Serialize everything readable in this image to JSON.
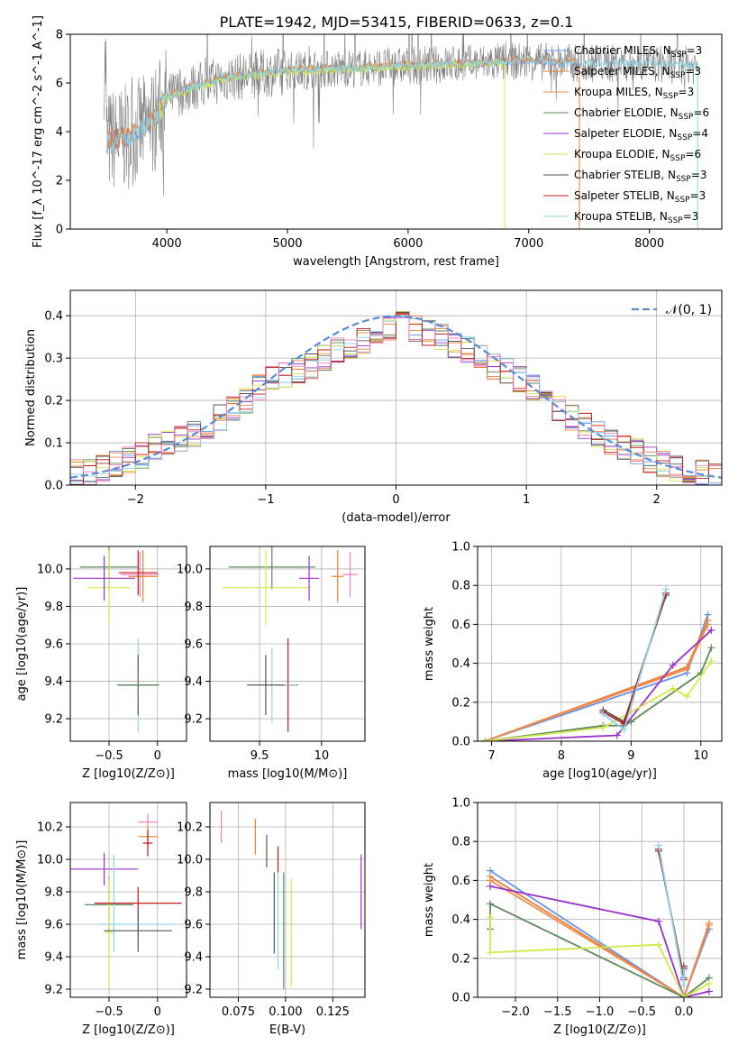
{
  "title": "PLATE=1942, MJD=53415, FIBERID=0633, z=0.1",
  "colors": {
    "chabrier_miles": "#6495ED",
    "salpeter_miles": "#ED7D31",
    "kroupa_miles": "#F08A4B",
    "chabrier_elodie": "#5B8A5B",
    "salpeter_elodie": "#9932CC",
    "kroupa_elodie": "#D4E84A",
    "chabrier_stelib": "#555555",
    "salpeter_stelib": "#C0171A",
    "kroupa_stelib": "#8FD3E6",
    "pink": "#F080C0",
    "spectrum": "#808080",
    "normal": "#5B8BD6"
  },
  "chart_data": [
    {
      "id": "spectrum",
      "type": "line",
      "xlabel": "wavelength [Angstrom, rest frame]",
      "ylabel": "Flux [f_λ 10^-17 erg cm^-2 s^-1 A^-1]",
      "xlim": [
        3200,
        8600
      ],
      "ylim": [
        0,
        8
      ],
      "xticks": [
        4000,
        5000,
        6000,
        7000,
        8000
      ],
      "yticks": [
        0,
        2,
        4,
        6,
        8
      ],
      "legend_position": "top-right",
      "legend": [
        {
          "name": "Chabrier MILES, N",
          "sub": "SSP",
          "tail": "=3",
          "color": "#6495ED"
        },
        {
          "name": "Salpeter MILES, N",
          "sub": "SSP",
          "tail": "=3",
          "color": "#ED7D31"
        },
        {
          "name": "Kroupa MILES, N",
          "sub": "SSP",
          "tail": "=3",
          "color": "#F08A4B"
        },
        {
          "name": "Chabrier ELODIE, N",
          "sub": "SSP",
          "tail": "=6",
          "color": "#5B8A5B"
        },
        {
          "name": "Salpeter ELODIE, N",
          "sub": "SSP",
          "tail": "=4",
          "color": "#9932CC"
        },
        {
          "name": "Kroupa ELODIE, N",
          "sub": "SSP",
          "tail": "=6",
          "color": "#D4E84A"
        },
        {
          "name": "Chabrier STELIB, N",
          "sub": "SSP",
          "tail": "=3",
          "color": "#555555"
        },
        {
          "name": "Salpeter STELIB, N",
          "sub": "SSP",
          "tail": "=3",
          "color": "#C0171A"
        },
        {
          "name": "Kroupa STELIB, N",
          "sub": "SSP",
          "tail": "=3",
          "color": "#8FD3E6"
        }
      ],
      "continuum": {
        "x": [
          3500,
          3700,
          3900,
          4000,
          4200,
          4500,
          5000,
          5500,
          6000,
          6500,
          7000,
          7500,
          8000,
          8400
        ],
        "y": [
          3.6,
          3.8,
          4.5,
          5.4,
          5.8,
          6.2,
          6.5,
          6.6,
          6.7,
          6.8,
          6.9,
          6.8,
          6.8,
          6.7
        ]
      },
      "model_ranges": {
        "miles": [
          3500,
          7420
        ],
        "elodie": [
          3900,
          6800
        ],
        "stelib": [
          3500,
          8400
        ]
      }
    },
    {
      "id": "residuals",
      "type": "histogram",
      "xlabel": "(data-model)/error",
      "ylabel": "Normed distribution",
      "xlim": [
        -2.5,
        2.5
      ],
      "ylim": [
        0,
        0.46
      ],
      "xticks": [
        -2,
        -1,
        0,
        1,
        2
      ],
      "yticks": [
        0.0,
        0.1,
        0.2,
        0.3,
        0.4
      ],
      "legend": "𝒩(0, 1)",
      "grid": true,
      "bin_width": 0.1,
      "hist_values": [
        0.03,
        0.03,
        0.04,
        0.05,
        0.06,
        0.07,
        0.09,
        0.1,
        0.11,
        0.12,
        0.14,
        0.16,
        0.18,
        0.2,
        0.23,
        0.25,
        0.26,
        0.27,
        0.28,
        0.3,
        0.32,
        0.33,
        0.34,
        0.35,
        0.37,
        0.38,
        0.37,
        0.36,
        0.35,
        0.33,
        0.32,
        0.3,
        0.28,
        0.27,
        0.25,
        0.23,
        0.2,
        0.18,
        0.16,
        0.14,
        0.12,
        0.1,
        0.09,
        0.08,
        0.06,
        0.05,
        0.04,
        0.03,
        0.03,
        0.02
      ]
    },
    {
      "id": "age-vs-z",
      "type": "errorbar",
      "xlabel": "Z [log10(Z/Z⊙)]",
      "ylabel": "age [log10(age/yr)]",
      "xlim": [
        -0.9,
        0.3
      ],
      "ylim": [
        9.08,
        10.12
      ],
      "xticks": [
        -0.5,
        0.0
      ],
      "yticks": [
        9.2,
        9.4,
        9.6,
        9.8,
        10.0
      ],
      "grid": true,
      "points": [
        {
          "x": -0.5,
          "y": 10.01,
          "xerr": 0.3,
          "yerr": 0.12,
          "color": "#5B8A5B"
        },
        {
          "x": -0.5,
          "y": 9.9,
          "xerr": 0.22,
          "yerr": 0.2,
          "color": "#D4E84A"
        },
        {
          "x": -0.55,
          "y": 9.95,
          "xerr": 0.32,
          "yerr": 0.12,
          "color": "#9932CC"
        },
        {
          "x": -0.18,
          "y": 9.97,
          "xerr": 0.2,
          "yerr": 0.12,
          "color": "#F080C0"
        },
        {
          "x": -0.15,
          "y": 9.96,
          "xerr": 0.15,
          "yerr": 0.14,
          "color": "#ED7D31"
        },
        {
          "x": -0.2,
          "y": 9.98,
          "xerr": 0.2,
          "yerr": 0.12,
          "color": "#C0171A"
        },
        {
          "x": -0.2,
          "y": 9.38,
          "xerr": 0.2,
          "yerr": 0.25,
          "color": "#8FD3E6"
        },
        {
          "x": -0.2,
          "y": 9.38,
          "xerr": 0.2,
          "yerr": 0.16,
          "color": "#555555"
        },
        {
          "x": -0.2,
          "y": 9.38,
          "xerr": 0.22,
          "yerr": 0.1,
          "color": "#5B8A5B"
        }
      ]
    },
    {
      "id": "age-vs-mass",
      "type": "errorbar",
      "xlabel": "mass [log10(M/M⊙)]",
      "ylabel": "",
      "xlim": [
        9.1,
        10.35
      ],
      "ylim": [
        9.08,
        10.12
      ],
      "xticks": [
        9.5,
        10.0
      ],
      "yticks": [
        9.2,
        9.4,
        9.6,
        9.8,
        10.0
      ],
      "grid": true,
      "points": [
        {
          "x": 9.6,
          "y": 10.01,
          "xerr": 0.35,
          "yerr": 0.12,
          "color": "#5B8A5B"
        },
        {
          "x": 9.55,
          "y": 9.9,
          "xerr": 0.35,
          "yerr": 0.2,
          "color": "#D4E84A"
        },
        {
          "x": 9.9,
          "y": 9.95,
          "xerr": 0.08,
          "yerr": 0.12,
          "color": "#9932CC"
        },
        {
          "x": 10.23,
          "y": 9.97,
          "xerr": 0.06,
          "yerr": 0.12,
          "color": "#F080C0"
        },
        {
          "x": 10.13,
          "y": 9.96,
          "xerr": 0.05,
          "yerr": 0.14,
          "color": "#ED7D31"
        },
        {
          "x": 9.73,
          "y": 9.38,
          "xerr": 0.08,
          "yerr": 0.25,
          "color": "#C0171A"
        },
        {
          "x": 9.6,
          "y": 9.38,
          "xerr": 0.2,
          "yerr": 0.2,
          "color": "#8FD3E6"
        },
        {
          "x": 9.55,
          "y": 9.38,
          "xerr": 0.15,
          "yerr": 0.16,
          "color": "#555555"
        }
      ]
    },
    {
      "id": "weight-vs-age",
      "type": "line",
      "xlabel": "age [log10(age/yr)]",
      "ylabel": "mass weight",
      "xlim": [
        6.8,
        10.3
      ],
      "ylim": [
        0,
        1.0
      ],
      "xticks": [
        7,
        8,
        9,
        10
      ],
      "yticks": [
        0.0,
        0.2,
        0.4,
        0.6,
        0.8,
        1.0
      ],
      "grid": true,
      "series": [
        {
          "color": "#6495ED",
          "x": [
            6.9,
            9.8,
            10.1
          ],
          "y": [
            0.0,
            0.35,
            0.65
          ]
        },
        {
          "color": "#ED7D31",
          "x": [
            6.9,
            9.8,
            10.1
          ],
          "y": [
            0.0,
            0.38,
            0.62
          ]
        },
        {
          "color": "#F08A4B",
          "x": [
            6.9,
            9.8,
            10.1
          ],
          "y": [
            0.0,
            0.37,
            0.6
          ]
        },
        {
          "color": "#5B8A5B",
          "x": [
            6.9,
            8.6,
            8.9,
            9.0,
            10.0,
            10.15
          ],
          "y": [
            0.0,
            0.08,
            0.08,
            0.1,
            0.35,
            0.48
          ]
        },
        {
          "color": "#9932CC",
          "x": [
            6.9,
            8.8,
            9.6,
            10.15
          ],
          "y": [
            0.0,
            0.03,
            0.39,
            0.57
          ]
        },
        {
          "color": "#D4E84A",
          "x": [
            6.9,
            8.6,
            9.6,
            9.8,
            10.15
          ],
          "y": [
            0.0,
            0.07,
            0.27,
            0.23,
            0.41
          ]
        },
        {
          "color": "#555555",
          "x": [
            8.6,
            8.9,
            9.5
          ],
          "y": [
            0.16,
            0.1,
            0.75
          ]
        },
        {
          "color": "#C0171A",
          "x": [
            8.6,
            8.9,
            9.5
          ],
          "y": [
            0.15,
            0.09,
            0.76
          ]
        },
        {
          "color": "#8FD3E6",
          "x": [
            8.6,
            8.9,
            9.5
          ],
          "y": [
            0.14,
            0.06,
            0.78
          ]
        }
      ]
    },
    {
      "id": "mass-vs-z",
      "type": "errorbar",
      "xlabel": "Z [log10(Z/Z⊙)]",
      "ylabel": "mass [log10(M/M⊙)]",
      "xlim": [
        -0.9,
        0.3
      ],
      "ylim": [
        9.15,
        10.35
      ],
      "xticks": [
        -0.5,
        0.0
      ],
      "yticks": [
        9.2,
        9.4,
        9.6,
        9.8,
        10.0,
        10.2
      ],
      "grid": true,
      "points": [
        {
          "x": -0.55,
          "y": 9.94,
          "xerr": 0.35,
          "yerr": 0.1,
          "color": "#9932CC"
        },
        {
          "x": -0.5,
          "y": 9.72,
          "xerr": 0.25,
          "yerr": 0.17,
          "color": "#5B8A5B"
        },
        {
          "x": -0.5,
          "y": 9.55,
          "xerr": 0.05,
          "yerr": 0.33,
          "color": "#D4E84A"
        },
        {
          "x": -0.45,
          "y": 9.73,
          "xerr": 0.05,
          "yerr": 0.3,
          "color": "#8FD3E6"
        },
        {
          "x": -0.1,
          "y": 10.23,
          "xerr": 0.1,
          "yerr": 0.05,
          "color": "#F080C0"
        },
        {
          "x": -0.1,
          "y": 10.14,
          "xerr": 0.1,
          "yerr": 0.06,
          "color": "#ED7D31"
        },
        {
          "x": -0.1,
          "y": 10.1,
          "xerr": 0.05,
          "yerr": 0.08,
          "color": "#C0171A"
        },
        {
          "x": -0.2,
          "y": 9.73,
          "xerr": 0.45,
          "yerr": 0.1,
          "color": "#C0171A"
        },
        {
          "x": -0.2,
          "y": 9.6,
          "xerr": 0.4,
          "yerr": 0.08,
          "color": "#8FD3E6"
        },
        {
          "x": -0.2,
          "y": 9.56,
          "xerr": 0.35,
          "yerr": 0.13,
          "color": "#555555"
        }
      ]
    },
    {
      "id": "mass-vs-ebv",
      "type": "errorbar",
      "xlabel": "E(B-V)",
      "ylabel": "",
      "xlim": [
        0.06,
        0.142
      ],
      "ylim": [
        9.15,
        10.35
      ],
      "xticks": [
        0.075,
        0.1,
        0.125
      ],
      "xticklabels": [
        "0.075",
        "0.100",
        "0.125"
      ],
      "yticks": [
        9.2,
        9.4,
        9.6,
        9.8,
        10.0,
        10.2
      ],
      "grid": true,
      "points": [
        {
          "x": 0.066,
          "y": 10.2,
          "xerr": 0,
          "yerr": 0.1,
          "color": "#F080C0"
        },
        {
          "x": 0.084,
          "y": 10.14,
          "xerr": 0,
          "yerr": 0.11,
          "color": "#ED7D31"
        },
        {
          "x": 0.09,
          "y": 10.05,
          "xerr": 0,
          "yerr": 0.1,
          "color": "#555555"
        },
        {
          "x": 0.096,
          "y": 10.0,
          "xerr": 0,
          "yerr": 0.08,
          "color": "#C0171A"
        },
        {
          "x": 0.094,
          "y": 9.67,
          "xerr": 0,
          "yerr": 0.25,
          "color": "#555555"
        },
        {
          "x": 0.096,
          "y": 9.62,
          "xerr": 0,
          "yerr": 0.3,
          "color": "#8FD3E6"
        },
        {
          "x": 0.099,
          "y": 9.56,
          "xerr": 0,
          "yerr": 0.36,
          "color": "#5B8A5B"
        },
        {
          "x": 0.103,
          "y": 9.55,
          "xerr": 0,
          "yerr": 0.33,
          "color": "#D4E84A"
        },
        {
          "x": 0.14,
          "y": 9.8,
          "xerr": 0,
          "yerr": 0.23,
          "color": "#9932CC"
        }
      ]
    },
    {
      "id": "weight-vs-z",
      "type": "line",
      "xlabel": "Z [log10(Z/Z⊙)]",
      "ylabel": "mass weight",
      "xlim": [
        -2.45,
        0.45
      ],
      "ylim": [
        0,
        1.0
      ],
      "xticks": [
        -2.0,
        -1.5,
        -1.0,
        -0.5,
        0.0
      ],
      "xticklabels": [
        "−2.0",
        "−1.5",
        "−1.0",
        "−0.5",
        "0.0"
      ],
      "yticks": [
        0.0,
        0.2,
        0.4,
        0.6,
        0.8,
        1.0
      ],
      "grid": true,
      "series": [
        {
          "color": "#6495ED",
          "x": [
            -2.3,
            0.0,
            0.3
          ],
          "y": [
            0.65,
            0.0,
            0.35
          ]
        },
        {
          "color": "#ED7D31",
          "x": [
            -2.3,
            0.0,
            0.3
          ],
          "y": [
            0.62,
            0.0,
            0.38
          ]
        },
        {
          "color": "#F08A4B",
          "x": [
            -2.3,
            0.0,
            0.3
          ],
          "y": [
            0.6,
            0.0,
            0.37
          ]
        },
        {
          "color": "#5B8A5B",
          "x": [
            -2.3,
            -2.3,
            0.0,
            0.3
          ],
          "y": [
            0.35,
            0.48,
            0.0,
            0.1
          ]
        },
        {
          "color": "#9932CC",
          "x": [
            -2.3,
            -0.3,
            0.0,
            0.3
          ],
          "y": [
            0.57,
            0.39,
            0.0,
            0.03
          ]
        },
        {
          "color": "#D4E84A",
          "x": [
            -2.3,
            -2.3,
            -0.3,
            0.0,
            0.3
          ],
          "y": [
            0.41,
            0.23,
            0.27,
            0.0,
            0.07
          ]
        },
        {
          "color": "#555555",
          "x": [
            -0.3,
            0.0,
            0.0
          ],
          "y": [
            0.75,
            0.1,
            0.16
          ]
        },
        {
          "color": "#C0171A",
          "x": [
            -0.3,
            0.0,
            0.0
          ],
          "y": [
            0.76,
            0.09,
            0.15
          ]
        },
        {
          "color": "#8FD3E6",
          "x": [
            -0.3,
            0.0,
            0.0
          ],
          "y": [
            0.78,
            0.06,
            0.14
          ]
        }
      ]
    }
  ]
}
